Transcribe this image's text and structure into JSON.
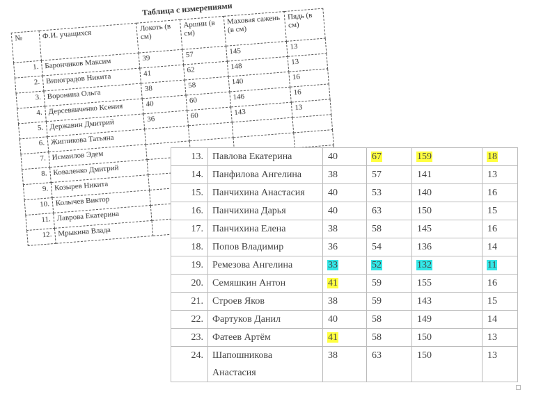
{
  "back_table": {
    "title": "Таблица с измерениями",
    "headers": [
      "№",
      "Ф.И. учащихся",
      "Локоть (в см)",
      "Аршин (в см)",
      "Маховая сажень (в см)",
      "Пядь (в см)"
    ],
    "rows": [
      {
        "n": "1.",
        "name": "Барончиков Максим",
        "values": [
          39,
          57,
          145,
          13
        ]
      },
      {
        "n": "2.",
        "name": "Виноградов Никита",
        "values": [
          41,
          62,
          148,
          13
        ]
      },
      {
        "n": "3.",
        "name": "Воронина Ольга",
        "values": [
          38,
          58,
          140,
          16
        ]
      },
      {
        "n": "4.",
        "name": "Дерсевянченко Ксения",
        "values": [
          40,
          60,
          146,
          16
        ]
      },
      {
        "n": "5.",
        "name": "Державин Дмитрий",
        "values": [
          36,
          60,
          143,
          13
        ]
      },
      {
        "n": "6.",
        "name": "Жигликова Татьяна"
      },
      {
        "n": "7.",
        "name": "Исмаилов Эдем"
      },
      {
        "n": "8.",
        "name": "Коваленко Дмитрий"
      },
      {
        "n": "9.",
        "name": "Козырев Никита"
      },
      {
        "n": "10.",
        "name": "Колычев Виктор"
      },
      {
        "n": "11.",
        "name": "Лаврова Екатерина"
      },
      {
        "n": "12.",
        "name": "Мрыкина Влада"
      }
    ]
  },
  "front_table": {
    "highlight_colors": {
      "yellow": "#ffff40",
      "cyan": "#33e6e6"
    },
    "rows": [
      {
        "n": "13.",
        "name": "Павлова Екатерина",
        "values": [
          40,
          67,
          159,
          18
        ],
        "highlights": [
          null,
          "yellow",
          "yellow",
          "yellow"
        ]
      },
      {
        "n": "14.",
        "name": "Панфилова Ангелина",
        "values": [
          38,
          57,
          141,
          13
        ]
      },
      {
        "n": "15.",
        "name": "Панчихина Анастасия",
        "values": [
          40,
          53,
          140,
          16
        ]
      },
      {
        "n": "16.",
        "name": "Панчихина Дарья",
        "values": [
          40,
          63,
          150,
          15
        ]
      },
      {
        "n": "17.",
        "name": "Панчихина Елена",
        "values": [
          38,
          58,
          145,
          16
        ]
      },
      {
        "n": "18.",
        "name": "Попов Владимир",
        "values": [
          36,
          54,
          136,
          14
        ]
      },
      {
        "n": "19.",
        "name": "Ремезова Ангелина",
        "values": [
          33,
          52,
          132,
          11
        ],
        "highlights": [
          "cyan",
          "cyan",
          "cyan",
          "cyan"
        ]
      },
      {
        "n": "20.",
        "name": "Семяшкин Антон",
        "values": [
          41,
          59,
          155,
          16
        ],
        "highlights": [
          "yellow",
          null,
          null,
          null
        ]
      },
      {
        "n": "21.",
        "name": "Строев Яков",
        "values": [
          38,
          59,
          143,
          15
        ]
      },
      {
        "n": "22.",
        "name": "Фартуков Данил",
        "values": [
          40,
          58,
          149,
          14
        ]
      },
      {
        "n": "23.",
        "name": "Фатеев Артём",
        "values": [
          41,
          58,
          150,
          13
        ],
        "highlights": [
          "yellow",
          null,
          null,
          null
        ]
      },
      {
        "n": "24.",
        "name": "Шапошникова Анастасия",
        "values": [
          38,
          63,
          150,
          13
        ]
      }
    ]
  }
}
